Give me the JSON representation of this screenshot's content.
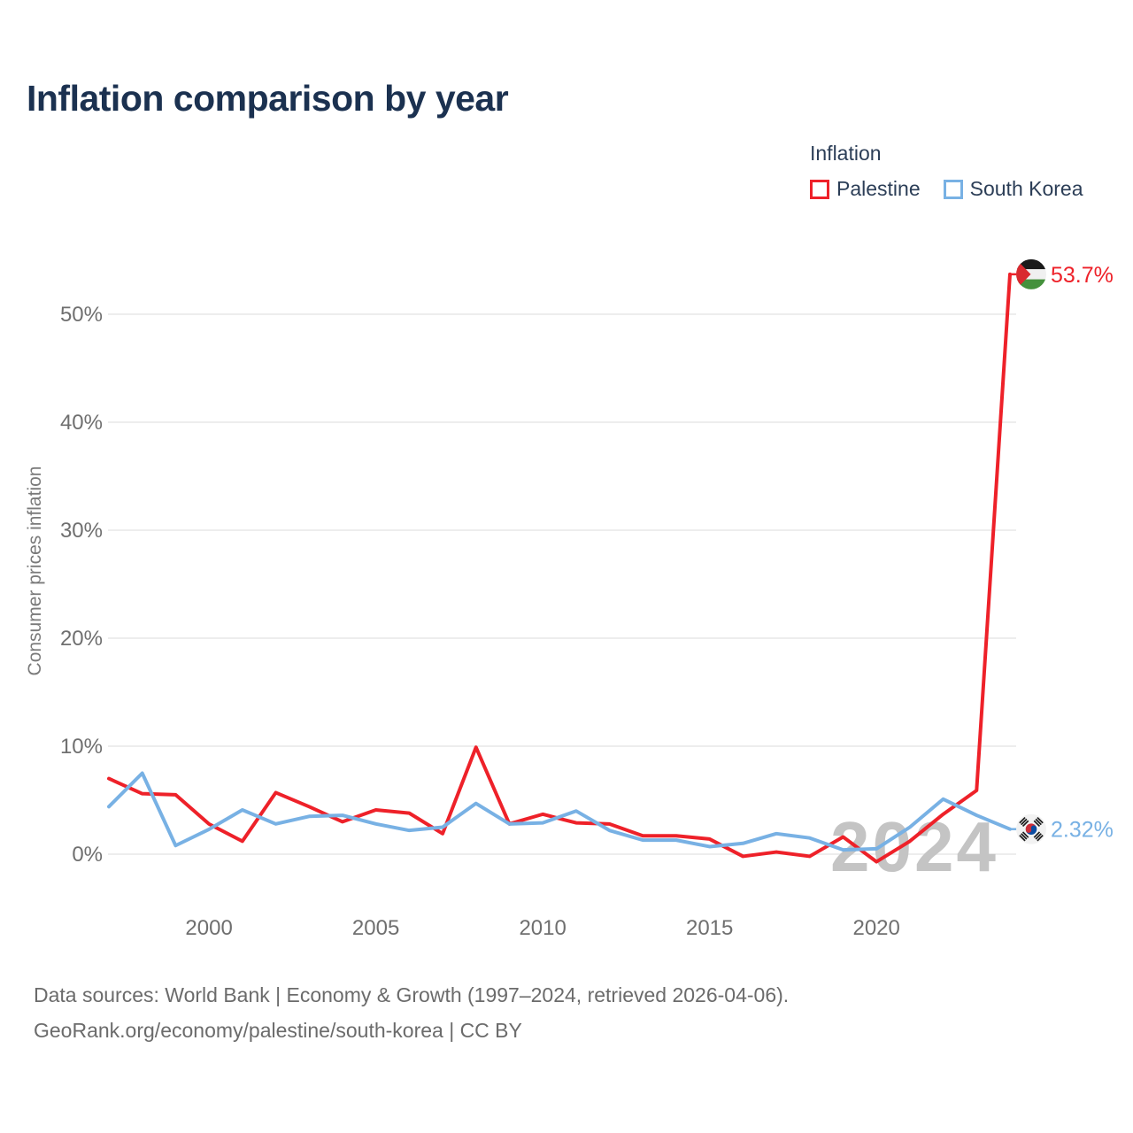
{
  "title": "Inflation comparison by year",
  "legend": {
    "heading": "Inflation",
    "items": [
      {
        "label": "Palestine",
        "color": "#ee2129"
      },
      {
        "label": "South Korea",
        "color": "#78b1e4"
      }
    ]
  },
  "chart_data": {
    "type": "line",
    "title": "Inflation comparison by year",
    "ylabel": "Consumer prices inflation",
    "xlabel": "",
    "grid": true,
    "legend_position": "top-right",
    "watermark": "2024",
    "ylim": [
      -2,
      55
    ],
    "xlim": [
      1997,
      2024
    ],
    "ytick_values": [
      0,
      10,
      20,
      30,
      40,
      50
    ],
    "ytick_labels": [
      "0%",
      "10%",
      "20%",
      "30%",
      "40%",
      "50%"
    ],
    "xtick_values": [
      2000,
      2005,
      2010,
      2015,
      2020
    ],
    "xtick_labels": [
      "2000",
      "2005",
      "2010",
      "2015",
      "2020"
    ],
    "x": [
      1997,
      1998,
      1999,
      2000,
      2001,
      2002,
      2003,
      2004,
      2005,
      2006,
      2007,
      2008,
      2009,
      2010,
      2011,
      2012,
      2013,
      2014,
      2015,
      2016,
      2017,
      2018,
      2019,
      2020,
      2021,
      2022,
      2023,
      2024
    ],
    "series": [
      {
        "id": "palestine",
        "name": "Palestine",
        "color": "#ee2129",
        "end_label": "53.7%",
        "flag": "palestine-flag",
        "values": [
          7.0,
          5.6,
          5.5,
          2.8,
          1.2,
          5.7,
          4.4,
          3.0,
          4.1,
          3.8,
          1.9,
          9.9,
          2.8,
          3.7,
          2.9,
          2.8,
          1.7,
          1.7,
          1.4,
          -0.2,
          0.2,
          -0.2,
          1.6,
          -0.7,
          1.2,
          3.7,
          5.9,
          53.7
        ]
      },
      {
        "id": "south-korea",
        "name": "South Korea",
        "color": "#78b1e4",
        "end_label": "2.32%",
        "flag": "south-korea-flag",
        "values": [
          4.4,
          7.5,
          0.8,
          2.3,
          4.1,
          2.8,
          3.5,
          3.6,
          2.8,
          2.2,
          2.5,
          4.7,
          2.8,
          2.9,
          4.0,
          2.2,
          1.3,
          1.3,
          0.7,
          1.0,
          1.9,
          1.5,
          0.4,
          0.5,
          2.5,
          5.1,
          3.6,
          2.32
        ]
      }
    ]
  },
  "footer": {
    "line1": "Data sources: World Bank | Economy & Growth (1997–2024, retrieved 2026-04-06).",
    "line2": "GeoRank.org/economy/palestine/south-korea | CC BY"
  }
}
